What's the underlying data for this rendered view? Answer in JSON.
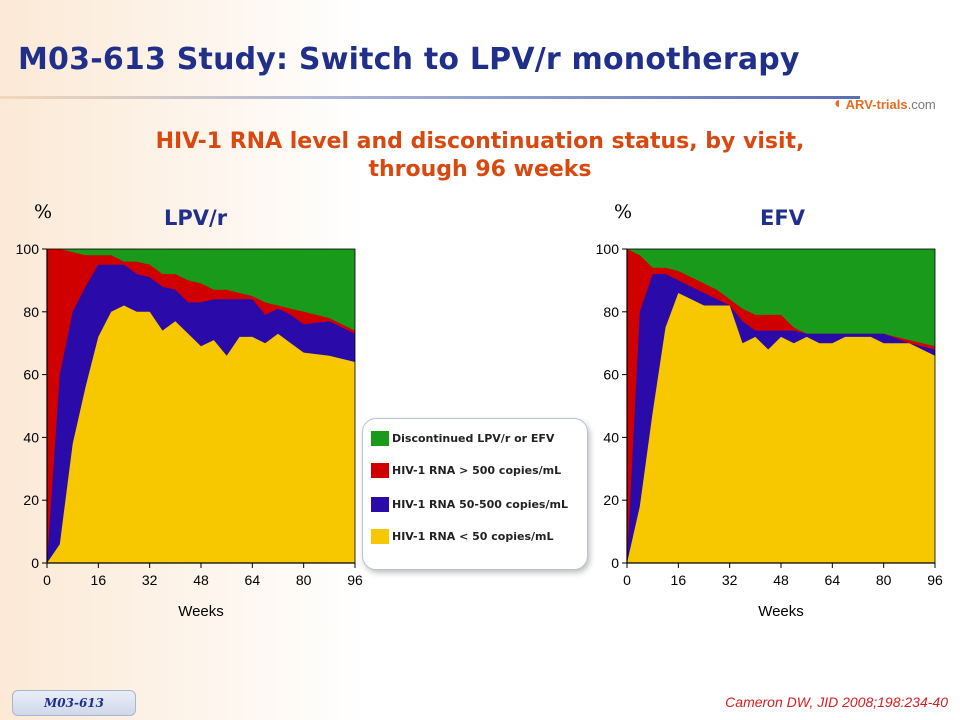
{
  "title": "M03-613 Study: Switch to LPV/r monotherapy",
  "logo": {
    "part1": "ARV-trials",
    "part2": ".com"
  },
  "subtitle_line1": "HIV-1 RNA level and discontinuation status, by visit,",
  "subtitle_line2": "through 96 weeks",
  "citation": "Cameron DW, JID 2008;198:234-40",
  "footer_tag": "M03-613",
  "colors": {
    "discontinued": "#1a9a1a",
    "gt500": "#d00000",
    "mid": "#2a0aa8",
    "lt50": "#f7c800"
  },
  "legend": [
    {
      "label": "Discontinued LPV/r or EFV",
      "color": "#1a9a1a"
    },
    {
      "label": "HIV-1 RNA > 500 copies/mL",
      "color": "#d00000"
    },
    {
      "label": "HIV-1 RNA 50-500 copies/mL",
      "color": "#2a0aa8"
    },
    {
      "label": "HIV-1 RNA < 50 copies/mL",
      "color": "#f7c800"
    }
  ],
  "chart_data": [
    {
      "type": "area",
      "title": "LPV/r",
      "ylabel": "%",
      "xlabel": "Weeks",
      "xlim": [
        0,
        96
      ],
      "ylim": [
        0,
        100
      ],
      "xticks": [
        0,
        16,
        32,
        48,
        64,
        80,
        96
      ],
      "yticks": [
        0,
        20,
        40,
        60,
        80,
        100
      ],
      "x": [
        0,
        4,
        8,
        12,
        16,
        20,
        24,
        28,
        32,
        36,
        40,
        44,
        48,
        52,
        56,
        60,
        64,
        68,
        72,
        76,
        80,
        88,
        96
      ],
      "series": [
        {
          "name": "HIV-1 RNA < 50 copies/mL",
          "cumulative": [
            0,
            6,
            38,
            56,
            72,
            80,
            82,
            80,
            80,
            74,
            77,
            73,
            69,
            71,
            66,
            72,
            72,
            70,
            73,
            70,
            67,
            66,
            64
          ]
        },
        {
          "name": "HIV-1 RNA 50-500 copies/mL",
          "cumulative": [
            0,
            60,
            80,
            88,
            95,
            95,
            95,
            92,
            91,
            88,
            87,
            83,
            83,
            84,
            84,
            84,
            84,
            79,
            81,
            79,
            76,
            77,
            73
          ]
        },
        {
          "name": "HIV-1 RNA > 500 copies/mL",
          "cumulative": [
            100,
            100,
            99,
            98,
            98,
            98,
            96,
            96,
            95,
            92,
            92,
            90,
            89,
            87,
            87,
            86,
            85,
            83,
            82,
            81,
            80,
            78,
            74
          ]
        },
        {
          "name": "Discontinued LPV/r or EFV",
          "cumulative": [
            100,
            100,
            100,
            100,
            100,
            100,
            100,
            100,
            100,
            100,
            100,
            100,
            100,
            100,
            100,
            100,
            100,
            100,
            100,
            100,
            100,
            100,
            100
          ]
        }
      ]
    },
    {
      "type": "area",
      "title": "EFV",
      "ylabel": "%",
      "xlabel": "Weeks",
      "xlim": [
        0,
        96
      ],
      "ylim": [
        0,
        100
      ],
      "xticks": [
        0,
        16,
        32,
        48,
        64,
        80,
        96
      ],
      "yticks": [
        0,
        20,
        40,
        60,
        80,
        100
      ],
      "x": [
        0,
        4,
        8,
        12,
        16,
        20,
        24,
        28,
        32,
        36,
        40,
        44,
        48,
        52,
        56,
        60,
        64,
        68,
        72,
        76,
        80,
        88,
        96
      ],
      "series": [
        {
          "name": "HIV-1 RNA < 50 copies/mL",
          "cumulative": [
            0,
            18,
            48,
            75,
            86,
            84,
            82,
            82,
            82,
            70,
            72,
            68,
            72,
            70,
            72,
            70,
            70,
            72,
            72,
            72,
            70,
            70,
            66
          ]
        },
        {
          "name": "HIV-1 RNA 50-500 copies/mL",
          "cumulative": [
            0,
            80,
            92,
            92,
            90,
            88,
            86,
            84,
            82,
            77,
            74,
            74,
            74,
            74,
            73,
            73,
            73,
            73,
            73,
            73,
            73,
            70,
            68
          ]
        },
        {
          "name": "HIV-1 RNA > 500 copies/mL",
          "cumulative": [
            100,
            98,
            94,
            94,
            93,
            91,
            89,
            87,
            84,
            81,
            79,
            79,
            79,
            75,
            73,
            73,
            73,
            73,
            73,
            73,
            73,
            71,
            69
          ]
        },
        {
          "name": "Discontinued LPV/r or EFV",
          "cumulative": [
            100,
            100,
            100,
            100,
            100,
            100,
            100,
            100,
            100,
            100,
            100,
            100,
            100,
            100,
            100,
            100,
            100,
            100,
            100,
            100,
            100,
            100,
            100
          ]
        }
      ]
    }
  ]
}
